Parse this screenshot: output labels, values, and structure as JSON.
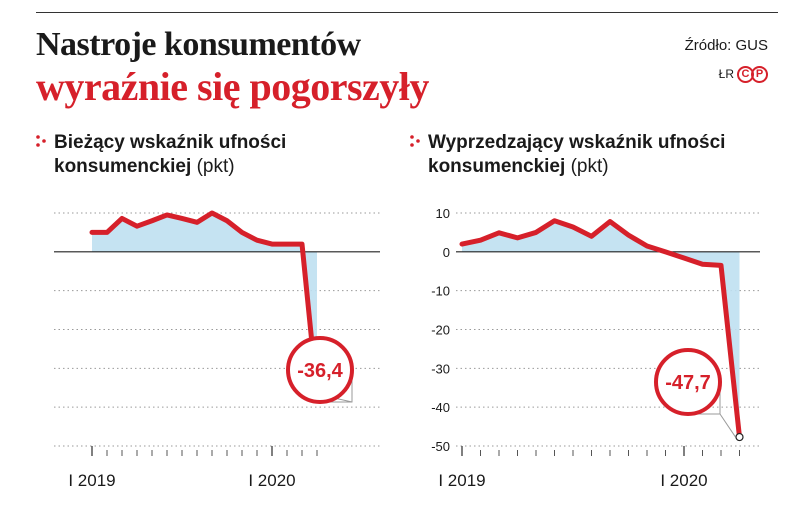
{
  "header": {
    "title_line1": "Nastroje konsumentów",
    "title_line2": "wyraźnie się pogorszyły",
    "source": "Źródło: GUS",
    "author": "ŁR",
    "badge_left": "C",
    "badge_right": "P",
    "brand_color": "#d6202a"
  },
  "panels": [
    {
      "title_bold": "Bieżący wskaźnik ufności konsumenckiej",
      "unit": "(pkt)",
      "bullet_icon": "dots-bullet-icon"
    },
    {
      "title_bold": "Wyprzedzający wskaźnik ufności konsumenckiej",
      "unit": "(pkt)",
      "bullet_icon": "dots-bullet-icon"
    }
  ],
  "chart_data": [
    {
      "type": "line",
      "title": "Bieżący wskaźnik ufności konsumenckiej",
      "ylabel": "(pkt)",
      "yticks": [],
      "ylim": [
        -50,
        10
      ],
      "xtick_labels": [
        "I 2019",
        "I 2020"
      ],
      "x": [
        "2019-01",
        "2019-02",
        "2019-03",
        "2019-04",
        "2019-05",
        "2019-06",
        "2019-07",
        "2019-08",
        "2019-09",
        "2019-10",
        "2019-11",
        "2019-12",
        "2020-01",
        "2020-02",
        "2020-03",
        "2020-04"
      ],
      "series": [
        {
          "values": [
            5.0,
            5.0,
            8.6,
            6.6,
            8.0,
            9.5,
            8.6,
            7.6,
            10.0,
            8.0,
            5.0,
            3.0,
            2.0,
            2.0,
            2.0,
            -36.4
          ]
        }
      ],
      "last_value_label": "-36,4",
      "line_color": "#d6202a",
      "fill_color": "#bfe0f1",
      "grid": true
    },
    {
      "type": "line",
      "title": "Wyprzedzający wskaźnik ufności konsumenckiej",
      "ylabel": "(pkt)",
      "yticks": [
        10,
        0,
        -10,
        -20,
        -30,
        -40,
        -50
      ],
      "ylim": [
        -50,
        10
      ],
      "xtick_labels": [
        "I 2019",
        "I 2020"
      ],
      "x": [
        "2019-01",
        "2019-02",
        "2019-03",
        "2019-04",
        "2019-05",
        "2019-06",
        "2019-07",
        "2019-08",
        "2019-09",
        "2019-10",
        "2019-11",
        "2019-12",
        "2020-01",
        "2020-02",
        "2020-03",
        "2020-04"
      ],
      "series": [
        {
          "values": [
            2.0,
            3.0,
            4.9,
            3.6,
            5.0,
            8.0,
            6.4,
            4.0,
            7.8,
            4.3,
            1.5,
            0.0,
            -1.6,
            -3.2,
            -3.5,
            -47.7
          ]
        }
      ],
      "last_value_label": "-47,7",
      "line_color": "#d6202a",
      "fill_color": "#bfe0f1",
      "grid": true
    }
  ]
}
